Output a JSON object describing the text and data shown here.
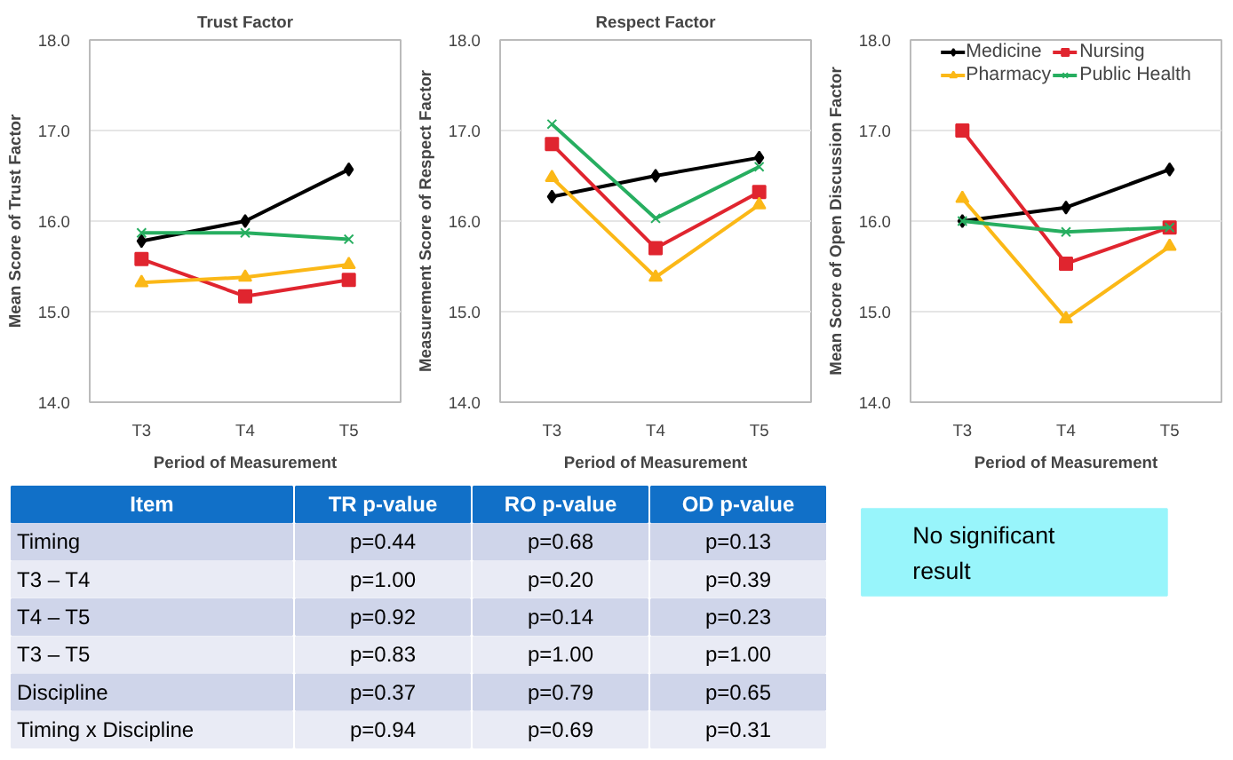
{
  "chart_data": [
    {
      "type": "line",
      "title": "Trust Factor",
      "xlabel": "Period of Measurement",
      "ylabel": "Mean Score of Trust Factor",
      "categories": [
        "T3",
        "T4",
        "T5"
      ],
      "ylim": [
        14,
        18
      ],
      "yticks": [
        {
          "value": 14,
          "label": "14.0"
        },
        {
          "value": 15,
          "label": "15.0"
        },
        {
          "value": 16,
          "label": "16.0"
        },
        {
          "value": 17,
          "label": "17.0"
        },
        {
          "value": 18,
          "label": "18.0"
        }
      ],
      "grid": "y",
      "legend": false,
      "series": [
        {
          "color": "#000000",
          "marker": "diamond",
          "values": [
            15.78,
            16.0,
            16.57
          ]
        },
        {
          "color": "#e0252f",
          "marker": "square",
          "values": [
            15.58,
            15.17,
            15.35
          ]
        },
        {
          "color": "#fbb817",
          "marker": "triangle",
          "values": [
            15.32,
            15.38,
            15.52
          ]
        },
        {
          "color": "#27ae60",
          "marker": "cross",
          "values": [
            15.87,
            15.87,
            15.8
          ]
        }
      ]
    },
    {
      "type": "line",
      "title": "Respect Factor",
      "xlabel": "Period of Measurement",
      "ylabel": "Measurement Score of Respect Factor",
      "categories": [
        "T3",
        "T4",
        "T5"
      ],
      "ylim": [
        14,
        18
      ],
      "yticks": [
        {
          "value": 14,
          "label": "14.0"
        },
        {
          "value": 15,
          "label": "15.0"
        },
        {
          "value": 16,
          "label": "16.0"
        },
        {
          "value": 17,
          "label": "17.0"
        },
        {
          "value": 18,
          "label": "18.0"
        }
      ],
      "grid": "y",
      "legend": false,
      "series": [
        {
          "color": "#000000",
          "marker": "diamond",
          "values": [
            16.27,
            16.5,
            16.7
          ]
        },
        {
          "color": "#e0252f",
          "marker": "square",
          "values": [
            16.85,
            15.7,
            16.32
          ]
        },
        {
          "color": "#fbb817",
          "marker": "triangle",
          "values": [
            16.48,
            15.38,
            16.18
          ]
        },
        {
          "color": "#27ae60",
          "marker": "cross",
          "values": [
            17.07,
            16.03,
            16.6
          ]
        }
      ]
    },
    {
      "type": "line",
      "xlabel": "Period of Measurement",
      "ylabel": "Mean Score of Open Discussion Factor",
      "categories": [
        "T3",
        "T4",
        "T5"
      ],
      "ylim": [
        14,
        18
      ],
      "yticks": [
        {
          "value": 14,
          "label": "14.0"
        },
        {
          "value": 15,
          "label": "15.0"
        },
        {
          "value": 16,
          "label": "16.0"
        },
        {
          "value": 17,
          "label": "17.0"
        },
        {
          "value": 18,
          "label": "18.0"
        }
      ],
      "grid": "y",
      "legend": "top",
      "series": [
        {
          "name": "Medicine",
          "color": "#000000",
          "marker": "diamond",
          "values": [
            16.0,
            16.15,
            16.57
          ]
        },
        {
          "name": "Nursing",
          "color": "#e0252f",
          "marker": "square",
          "values": [
            17.0,
            15.53,
            15.93
          ]
        },
        {
          "name": "Pharmacy",
          "color": "#fbb817",
          "marker": "triangle",
          "values": [
            16.25,
            14.92,
            15.72
          ]
        },
        {
          "name": "Public Health",
          "color": "#27ae60",
          "marker": "cross",
          "values": [
            16.0,
            15.88,
            15.93
          ]
        }
      ]
    },
    {
      "type": "other",
      "ylabel": "Item",
      "categories": [
        "TR p-value",
        "RO p-value",
        "OD p-value"
      ],
      "y_categories": [
        "Timing",
        "  T3 – T4",
        "  T4 – T5",
        "  T3 – T5",
        "Discipline",
        "Timing x Discipline"
      ],
      "cell_labels": [
        [
          "p=0.44",
          "p=0.68",
          "p=0.13"
        ],
        [
          "p=1.00",
          "p=0.20",
          "p=0.39"
        ],
        [
          "p=0.92",
          "p=0.14",
          "p=0.23"
        ],
        [
          "p=0.83",
          "p=1.00",
          "p=1.00"
        ],
        [
          "p=0.37",
          "p=0.79",
          "p=0.65"
        ],
        [
          "p=0.94",
          "p=0.69",
          "p=0.31"
        ]
      ]
    },
    {
      "type": "other",
      "annotations": [
        "No significant result"
      ]
    }
  ]
}
